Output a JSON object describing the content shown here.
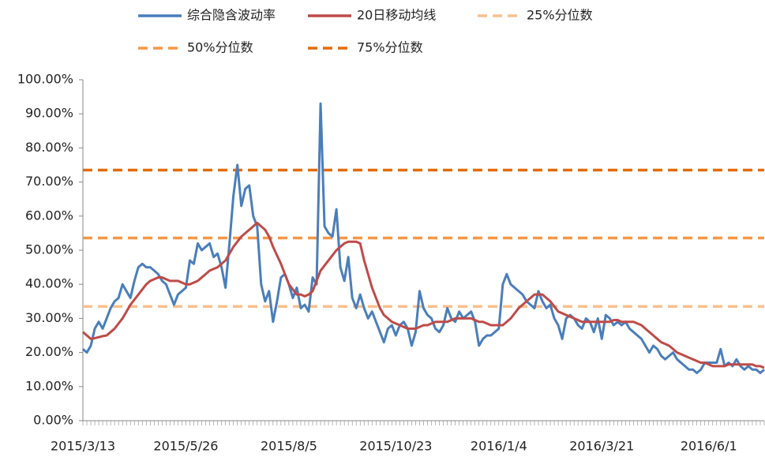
{
  "chart_data": {
    "type": "line",
    "categories": [
      "2015/3/13",
      null,
      null,
      null,
      null,
      null,
      null,
      null,
      null,
      null,
      null,
      null,
      null,
      null,
      null,
      null,
      null,
      null,
      null,
      null,
      null,
      null,
      null,
      null,
      null,
      null,
      "2015/5/26",
      null,
      null,
      null,
      null,
      null,
      null,
      null,
      null,
      null,
      null,
      null,
      null,
      null,
      null,
      null,
      null,
      null,
      null,
      null,
      null,
      null,
      null,
      null,
      null,
      null,
      "2015/8/5",
      null,
      null,
      null,
      null,
      null,
      null,
      null,
      null,
      null,
      null,
      null,
      null,
      null,
      null,
      null,
      null,
      null,
      null,
      null,
      null,
      null,
      null,
      null,
      null,
      null,
      null,
      "2015/10/23",
      null,
      null,
      null,
      null,
      null,
      null,
      null,
      null,
      null,
      null,
      null,
      null,
      null,
      null,
      null,
      null,
      null,
      null,
      null,
      null,
      null,
      null,
      null,
      null,
      null,
      "2016/1/4",
      null,
      null,
      null,
      null,
      null,
      null,
      null,
      null,
      null,
      null,
      null,
      null,
      null,
      null,
      null,
      null,
      null,
      null,
      null,
      null,
      null,
      null,
      null,
      null,
      null,
      "2016/3/21",
      null,
      null,
      null,
      null,
      null,
      null,
      null,
      null,
      null,
      null,
      null,
      null,
      null,
      null,
      null,
      null,
      null,
      null,
      null,
      null,
      null,
      null,
      null,
      null,
      null,
      null,
      "2016/6/1",
      null,
      null,
      null,
      null,
      null,
      null,
      null,
      null,
      null,
      null,
      null,
      null,
      null,
      null
    ],
    "series": [
      {
        "name": "综合隐含波动率",
        "color": "#4a7ebb",
        "values": [
          21,
          20,
          22,
          27,
          29,
          27,
          30,
          33,
          35,
          36,
          40,
          38,
          36,
          41,
          45,
          46,
          45,
          45,
          44,
          43,
          41,
          40,
          37,
          34,
          37,
          38,
          39,
          47,
          46,
          52,
          50,
          51,
          52,
          48,
          49,
          45,
          39,
          52,
          66,
          75,
          63,
          68,
          69,
          60,
          57,
          40,
          35,
          38,
          29,
          35,
          42,
          43,
          40,
          36,
          39,
          33,
          34,
          32,
          42,
          40,
          93,
          57,
          55,
          54,
          62,
          45,
          41,
          48,
          36,
          33,
          37,
          33,
          30,
          32,
          29,
          26,
          23,
          27,
          28,
          25,
          28,
          29,
          27,
          22,
          26,
          38,
          33,
          31,
          30,
          27,
          26,
          28,
          33,
          30,
          29,
          32,
          30,
          31,
          32,
          29,
          22,
          24,
          25,
          25,
          26,
          27,
          40,
          43,
          40,
          39,
          38,
          37,
          35,
          34,
          33,
          38,
          35,
          33,
          34,
          30,
          28,
          24,
          30,
          31,
          30,
          28,
          27,
          30,
          29,
          26,
          30,
          24,
          31,
          30,
          28,
          29,
          28,
          29,
          27,
          26,
          25,
          24,
          22,
          20,
          22,
          21,
          19,
          18,
          19,
          20,
          18,
          17,
          16,
          15,
          15,
          14,
          15,
          17,
          17,
          17,
          17,
          21,
          16,
          17,
          16,
          18,
          16,
          15,
          16,
          15,
          15,
          14,
          15
        ]
      },
      {
        "name": "20日移动均线",
        "color": "#be4b48",
        "values": [
          26,
          25,
          24,
          24.2,
          24.5,
          24.8,
          25,
          26,
          27,
          28.5,
          30,
          32,
          34,
          35.5,
          37,
          38.5,
          40,
          41,
          41.5,
          42,
          42,
          41.5,
          41,
          41,
          41,
          40.5,
          40,
          40,
          40.5,
          41,
          42,
          43,
          44,
          44.5,
          45,
          46,
          47,
          49,
          51,
          52.5,
          54,
          55,
          56,
          57,
          58,
          57,
          56,
          54,
          51,
          48.5,
          46,
          43,
          40,
          38.5,
          37,
          37,
          36.5,
          37,
          38,
          41,
          44,
          45.5,
          47,
          48.5,
          50,
          51,
          52,
          52.5,
          52.5,
          52.5,
          52,
          47,
          43,
          39,
          36,
          33,
          31,
          30,
          29,
          28.5,
          28,
          27.5,
          27,
          27,
          27,
          27.5,
          28,
          28,
          28.5,
          29,
          29,
          29,
          29,
          29.5,
          30,
          30,
          30,
          30,
          30,
          29.5,
          29,
          29,
          28.5,
          28,
          28,
          28,
          28,
          29,
          30,
          31.5,
          33,
          34,
          35,
          36,
          37,
          37,
          37,
          36,
          35,
          33.5,
          32,
          31.5,
          31,
          30.5,
          30,
          29.5,
          29,
          29,
          29,
          29,
          29,
          29,
          29,
          29,
          29.5,
          29.5,
          29,
          29,
          29,
          29,
          28.5,
          28,
          27,
          26,
          25,
          24,
          23,
          22.5,
          22,
          21,
          20,
          19.5,
          19,
          18.5,
          18,
          17.5,
          17,
          17,
          16.5,
          16,
          16,
          16,
          16,
          16.5,
          16.5,
          16.5,
          16.5,
          16.5,
          16.5,
          16.5,
          16,
          16,
          15.5
        ]
      }
    ],
    "reference_lines": [
      {
        "name": "25%分位数",
        "color": "#f9c08f",
        "value": 33.5
      },
      {
        "name": "50%分位数",
        "color": "#f79646",
        "value": 53.6
      },
      {
        "name": "75%分位数",
        "color": "#e46c0a",
        "value": 73.5
      }
    ],
    "ylim": [
      0,
      100
    ],
    "yticks": [
      {
        "value": 0,
        "label": "0.00%"
      },
      {
        "value": 10,
        "label": "10.00%"
      },
      {
        "value": 20,
        "label": "20.00%"
      },
      {
        "value": 30,
        "label": "30.00%"
      },
      {
        "value": 40,
        "label": "40.00%"
      },
      {
        "value": 50,
        "label": "50.00%"
      },
      {
        "value": 60,
        "label": "60.00%"
      },
      {
        "value": 70,
        "label": "70.00%"
      },
      {
        "value": 80,
        "label": "80.00%"
      },
      {
        "value": 90,
        "label": "90.00%"
      },
      {
        "value": 100,
        "label": "100.00%"
      }
    ],
    "grid": false
  }
}
